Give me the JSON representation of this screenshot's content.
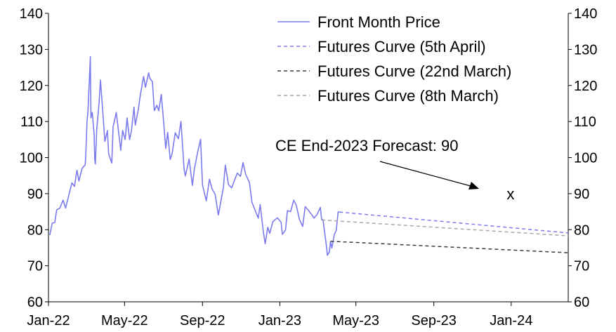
{
  "chart_data": {
    "type": "line",
    "title": "",
    "xlabel": "",
    "ylabel": "",
    "ylim": [
      60,
      140
    ],
    "yticks": [
      60,
      70,
      80,
      90,
      100,
      110,
      120,
      130,
      140
    ],
    "secondary_yticks": [
      60,
      70,
      80,
      90,
      100,
      110,
      120,
      130,
      140
    ],
    "xlim": [
      "2022-01-01",
      "2024-03-31"
    ],
    "xticks": [
      {
        "date": "2022-01-01",
        "label": "Jan-22"
      },
      {
        "date": "2022-05-01",
        "label": "May-22"
      },
      {
        "date": "2022-09-01",
        "label": "Sep-22"
      },
      {
        "date": "2023-01-01",
        "label": "Jan-23"
      },
      {
        "date": "2023-05-01",
        "label": "May-23"
      },
      {
        "date": "2023-09-01",
        "label": "Sep-23"
      },
      {
        "date": "2024-01-01",
        "label": "Jan-24"
      }
    ],
    "grid": false,
    "legend_position": "top-right",
    "series": [
      {
        "name": "Front Month Price",
        "color": "#7b7bef",
        "dash": "solid",
        "points": [
          [
            "2022-01-03",
            78.5
          ],
          [
            "2022-01-07",
            81.8
          ],
          [
            "2022-01-11",
            82.0
          ],
          [
            "2022-01-14",
            85.5
          ],
          [
            "2022-01-19",
            86.0
          ],
          [
            "2022-01-24",
            88.2
          ],
          [
            "2022-01-28",
            86.0
          ],
          [
            "2022-02-02",
            89.5
          ],
          [
            "2022-02-07",
            93.0
          ],
          [
            "2022-02-11",
            92.0
          ],
          [
            "2022-02-15",
            96.5
          ],
          [
            "2022-02-18",
            93.5
          ],
          [
            "2022-02-23",
            97.0
          ],
          [
            "2022-02-28",
            98.0
          ],
          [
            "2022-03-01",
            101.0
          ],
          [
            "2022-03-03",
            110.5
          ],
          [
            "2022-03-04",
            112.0
          ],
          [
            "2022-03-07",
            123.5
          ],
          [
            "2022-03-08",
            128.0
          ],
          [
            "2022-03-09",
            111.0
          ],
          [
            "2022-03-11",
            112.5
          ],
          [
            "2022-03-14",
            106.5
          ],
          [
            "2022-03-15",
            99.5
          ],
          [
            "2022-03-16",
            98.2
          ],
          [
            "2022-03-18",
            107.5
          ],
          [
            "2022-03-22",
            115.5
          ],
          [
            "2022-03-24",
            121.5
          ],
          [
            "2022-03-28",
            112.0
          ],
          [
            "2022-03-31",
            104.5
          ],
          [
            "2022-04-04",
            107.5
          ],
          [
            "2022-04-06",
            101.0
          ],
          [
            "2022-04-11",
            98.5
          ],
          [
            "2022-04-13",
            108.5
          ],
          [
            "2022-04-18",
            112.5
          ],
          [
            "2022-04-21",
            108.0
          ],
          [
            "2022-04-25",
            102.0
          ],
          [
            "2022-04-28",
            107.5
          ],
          [
            "2022-05-02",
            105.0
          ],
          [
            "2022-05-05",
            111.0
          ],
          [
            "2022-05-09",
            105.0
          ],
          [
            "2022-05-12",
            107.5
          ],
          [
            "2022-05-16",
            114.0
          ],
          [
            "2022-05-18",
            109.0
          ],
          [
            "2022-05-23",
            113.5
          ],
          [
            "2022-05-26",
            117.5
          ],
          [
            "2022-05-31",
            122.5
          ],
          [
            "2022-06-03",
            119.5
          ],
          [
            "2022-06-08",
            123.5
          ],
          [
            "2022-06-10",
            122.0
          ],
          [
            "2022-06-14",
            121.0
          ],
          [
            "2022-06-17",
            113.0
          ],
          [
            "2022-06-21",
            114.5
          ],
          [
            "2022-06-24",
            113.0
          ],
          [
            "2022-06-28",
            117.5
          ],
          [
            "2022-07-01",
            111.5
          ],
          [
            "2022-07-05",
            102.5
          ],
          [
            "2022-07-08",
            107.0
          ],
          [
            "2022-07-12",
            99.5
          ],
          [
            "2022-07-15",
            101.0
          ],
          [
            "2022-07-20",
            106.9
          ],
          [
            "2022-07-25",
            105.2
          ],
          [
            "2022-07-29",
            110.0
          ],
          [
            "2022-08-03",
            96.8
          ],
          [
            "2022-08-05",
            94.9
          ],
          [
            "2022-08-11",
            99.6
          ],
          [
            "2022-08-16",
            92.3
          ],
          [
            "2022-08-19",
            96.7
          ],
          [
            "2022-08-24",
            101.2
          ],
          [
            "2022-08-29",
            105.1
          ],
          [
            "2022-09-01",
            92.4
          ],
          [
            "2022-09-07",
            88.0
          ],
          [
            "2022-09-12",
            94.0
          ],
          [
            "2022-09-16",
            91.4
          ],
          [
            "2022-09-21",
            89.8
          ],
          [
            "2022-09-26",
            84.1
          ],
          [
            "2022-09-30",
            87.9
          ],
          [
            "2022-10-04",
            91.8
          ],
          [
            "2022-10-07",
            97.9
          ],
          [
            "2022-10-12",
            92.5
          ],
          [
            "2022-10-17",
            91.6
          ],
          [
            "2022-10-21",
            93.5
          ],
          [
            "2022-10-26",
            95.7
          ],
          [
            "2022-10-31",
            94.8
          ],
          [
            "2022-11-04",
            98.6
          ],
          [
            "2022-11-08",
            95.4
          ],
          [
            "2022-11-14",
            93.1
          ],
          [
            "2022-11-18",
            87.6
          ],
          [
            "2022-11-23",
            85.4
          ],
          [
            "2022-11-28",
            83.2
          ],
          [
            "2022-12-01",
            87.0
          ],
          [
            "2022-12-06",
            79.4
          ],
          [
            "2022-12-09",
            76.1
          ],
          [
            "2022-12-13",
            80.7
          ],
          [
            "2022-12-16",
            79.0
          ],
          [
            "2022-12-21",
            82.2
          ],
          [
            "2022-12-28",
            83.3
          ],
          [
            "2023-01-03",
            82.1
          ],
          [
            "2023-01-05",
            78.7
          ],
          [
            "2023-01-10",
            79.9
          ],
          [
            "2023-01-13",
            85.3
          ],
          [
            "2023-01-18",
            85.0
          ],
          [
            "2023-01-23",
            88.2
          ],
          [
            "2023-01-27",
            86.7
          ],
          [
            "2023-02-01",
            82.8
          ],
          [
            "2023-02-06",
            80.9
          ],
          [
            "2023-02-10",
            86.4
          ],
          [
            "2023-02-15",
            85.4
          ],
          [
            "2023-02-21",
            84.0
          ],
          [
            "2023-02-24",
            83.2
          ],
          [
            "2023-03-01",
            84.3
          ],
          [
            "2023-03-06",
            86.2
          ],
          [
            "2023-03-08",
            82.7
          ],
          [
            "2023-03-10",
            82.8
          ],
          [
            "2023-03-14",
            77.5
          ],
          [
            "2023-03-16",
            74.7
          ],
          [
            "2023-03-17",
            72.9
          ],
          [
            "2023-03-20",
            73.8
          ],
          [
            "2023-03-22",
            76.7
          ],
          [
            "2023-03-24",
            74.9
          ],
          [
            "2023-03-28",
            78.7
          ],
          [
            "2023-03-31",
            79.8
          ],
          [
            "2023-04-03",
            84.9
          ],
          [
            "2023-04-05",
            84.9
          ]
        ]
      },
      {
        "name": "Futures Curve (5th April)",
        "color": "#7b7bef",
        "dash": "dashed",
        "points": [
          [
            "2023-04-05",
            84.9
          ],
          [
            "2024-03-31",
            79.1
          ]
        ]
      },
      {
        "name": "Futures Curve (22nd March)",
        "color": "#3a3a3a",
        "dash": "dashed",
        "points": [
          [
            "2023-03-22",
            76.8
          ],
          [
            "2024-03-31",
            73.6
          ]
        ]
      },
      {
        "name": "Futures Curve (8th March)",
        "color": "#a6a6a6",
        "dash": "dashed",
        "points": [
          [
            "2023-03-08",
            82.7
          ],
          [
            "2024-03-31",
            78.3
          ]
        ]
      }
    ],
    "annotations": [
      {
        "text": "CE End-2023 Forecast: 90",
        "marker": "x",
        "date": "2023-12-31",
        "value": 90
      }
    ]
  }
}
